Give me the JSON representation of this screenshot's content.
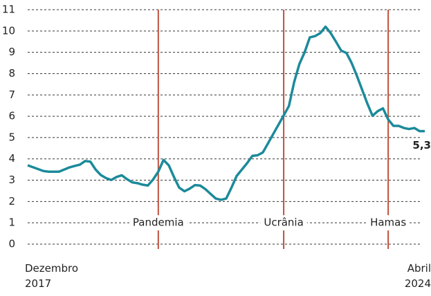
{
  "chart_data": {
    "type": "line",
    "categories": [
      "Dezembro 2017",
      null,
      null,
      null,
      null,
      null,
      null,
      null,
      null,
      null,
      null,
      null,
      null,
      null,
      null,
      null,
      null,
      null,
      null,
      null,
      null,
      null,
      null,
      null,
      null,
      null,
      null,
      null,
      null,
      null,
      null,
      null,
      null,
      null,
      null,
      null,
      null,
      null,
      null,
      null,
      null,
      null,
      null,
      null,
      null,
      null,
      null,
      null,
      null,
      null,
      null,
      null,
      null,
      null,
      null,
      null,
      null,
      null,
      null,
      null,
      null,
      null,
      null,
      null,
      null,
      null,
      null,
      null,
      null,
      null,
      null,
      null,
      null,
      null,
      null,
      null,
      "Abril 2024"
    ],
    "series": [
      {
        "color": "#1b8a9a",
        "values": [
          3.7,
          3.61,
          3.52,
          3.43,
          3.4,
          3.4,
          3.4,
          3.5,
          3.6,
          3.67,
          3.73,
          3.9,
          3.87,
          3.5,
          3.24,
          3.1,
          3.01,
          3.15,
          3.23,
          3.05,
          2.9,
          2.86,
          2.79,
          2.75,
          3.03,
          3.4,
          3.95,
          3.7,
          3.15,
          2.65,
          2.48,
          2.6,
          2.77,
          2.75,
          2.58,
          2.36,
          2.14,
          2.08,
          2.14,
          2.65,
          3.2,
          3.5,
          3.8,
          4.14,
          4.17,
          4.3,
          4.73,
          5.17,
          5.6,
          6.04,
          6.48,
          7.6,
          8.45,
          9.0,
          9.7,
          9.76,
          9.9,
          10.2,
          9.9,
          9.5,
          9.08,
          8.97,
          8.5,
          7.9,
          7.25,
          6.6,
          6.02,
          6.24,
          6.37,
          5.85,
          5.55,
          5.55,
          5.45,
          5.4,
          5.45,
          5.3,
          5.3
        ],
        "value_labels": [
          null,
          null,
          null,
          null,
          null,
          null,
          null,
          null,
          null,
          null,
          null,
          null,
          null,
          null,
          null,
          null,
          null,
          null,
          null,
          null,
          null,
          null,
          null,
          null,
          null,
          null,
          null,
          null,
          null,
          null,
          null,
          null,
          null,
          null,
          null,
          null,
          null,
          null,
          null,
          null,
          null,
          null,
          null,
          null,
          null,
          null,
          null,
          null,
          null,
          null,
          null,
          null,
          null,
          null,
          null,
          null,
          null,
          null,
          null,
          null,
          null,
          null,
          null,
          null,
          null,
          null,
          null,
          null,
          null,
          null,
          null,
          null,
          null,
          null,
          null,
          null,
          "5,3"
        ]
      }
    ],
    "events": [
      {
        "label": "Pandemia",
        "index": 25
      },
      {
        "label": "Ucrânia",
        "index": 49
      },
      {
        "label": "Hamas",
        "index": 69
      }
    ],
    "event_color": "#c0503c",
    "ylim": [
      0,
      11
    ],
    "yticks": [
      0,
      1,
      2,
      3,
      4,
      5,
      6,
      7,
      8,
      9,
      10,
      11
    ],
    "grid": true
  }
}
